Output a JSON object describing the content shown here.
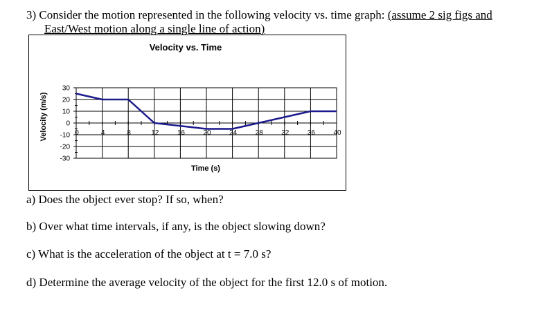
{
  "problem": {
    "intro_lead": "3) Consider the motion represented in the following velocity vs. time graph: ",
    "intro_underlined": "(assume 2 sig figs and",
    "intro_line2_underlined": "East/West motion",
    "intro_line2_rest": " along a single line of action)"
  },
  "questions": {
    "a": "a) Does the object ever stop?  If so, when?",
    "b": "b) Over what time intervals, if any, is the object slowing down?",
    "c": "c) What is the acceleration of the object at t = 7.0 s?",
    "d": "d) Determine the average velocity of the object for the first 12.0 s of motion."
  },
  "chart_data": {
    "type": "line",
    "title": "Velocity vs. Time",
    "xlabel": "Time (s)",
    "ylabel": "Velocity (m/s)",
    "xlim": [
      0,
      40
    ],
    "ylim": [
      -30,
      30
    ],
    "x_ticks": [
      0,
      4,
      8,
      12,
      16,
      20,
      24,
      28,
      32,
      36,
      40
    ],
    "y_ticks": [
      30,
      20,
      10,
      0,
      -10,
      -20,
      -30
    ],
    "x_tick_labels": [
      "0",
      "4",
      "8",
      "12",
      "16",
      "20",
      "24",
      "28",
      "32",
      "36",
      "40"
    ],
    "y_tick_labels": [
      "30",
      "20",
      "10",
      "0",
      "-10",
      "-20",
      "-30"
    ],
    "grid": true,
    "legend": "none",
    "line_color": "#1a1a8c",
    "series": [
      {
        "x": [
          0,
          4,
          8,
          12,
          20,
          24,
          28,
          32,
          36,
          40
        ],
        "y": [
          25,
          20,
          20,
          0,
          -5,
          -5,
          0,
          5,
          10,
          10
        ]
      }
    ]
  }
}
